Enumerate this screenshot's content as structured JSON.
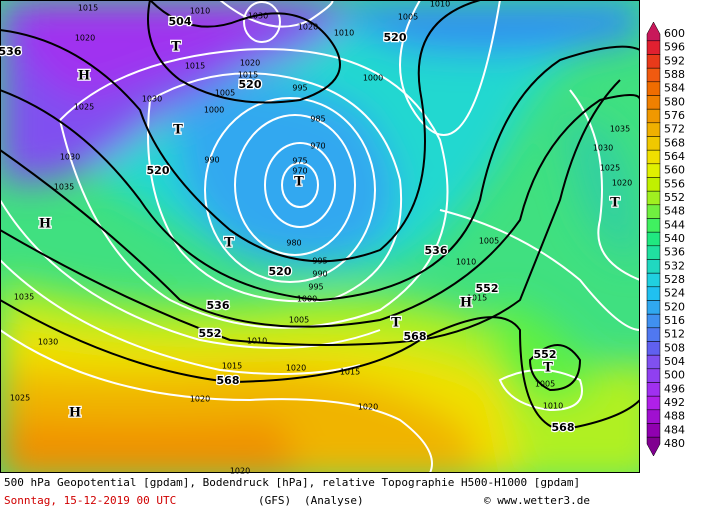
{
  "map": {
    "caption": "500 hPa Geopotential [gpdam], Bodendruck [hPa], relative Topographie H500-H1000 [gpdam]",
    "date": "Sonntag, 15-12-2019  00 UTC",
    "model": "(GFS)",
    "run": "(Analyse)",
    "source": "© www.wetter3.de",
    "heights": [
      "504",
      "536",
      "520",
      "520",
      "520",
      "536",
      "552",
      "568",
      "536",
      "552",
      "568",
      "552",
      "568",
      "520"
    ],
    "pressures": [
      "1015",
      "1010",
      "1030",
      "1020",
      "1010",
      "1005",
      "1010",
      "1020",
      "1015",
      "1020",
      "1015",
      "1005",
      "1000",
      "995",
      "1000",
      "1030",
      "1025",
      "985",
      "990",
      "970",
      "975",
      "970",
      "980",
      "995",
      "990",
      "995",
      "1000",
      "1005",
      "1010",
      "1015",
      "1020",
      "1015",
      "1020",
      "1020",
      "1030",
      "1035",
      "1025",
      "1030",
      "1035",
      "1005",
      "1010",
      "1015",
      "1005",
      "1010",
      "1035",
      "1030",
      "1025",
      "1020",
      "1020"
    ],
    "centers": [
      "T",
      "T",
      "H",
      "T",
      "T",
      "H",
      "H",
      "H",
      "T",
      "T",
      "T"
    ]
  },
  "colorbar": {
    "levels": [
      600,
      596,
      592,
      588,
      584,
      580,
      576,
      572,
      568,
      564,
      560,
      556,
      552,
      548,
      544,
      540,
      536,
      532,
      528,
      524,
      520,
      516,
      512,
      508,
      504,
      500,
      496,
      492,
      488,
      484,
      480
    ],
    "colors": [
      "#c8185a",
      "#e02030",
      "#e83a1a",
      "#f05a10",
      "#f06c00",
      "#f08000",
      "#f09800",
      "#f0b000",
      "#f0c800",
      "#f0e000",
      "#e0f000",
      "#c0f000",
      "#a0f020",
      "#70f040",
      "#40f060",
      "#20e880",
      "#20e0a0",
      "#20d8c0",
      "#20d0e0",
      "#20c0f0",
      "#30a8f0",
      "#4090f0",
      "#5078f0",
      "#6060f0",
      "#8050f0",
      "#9040f0",
      "#a030f0",
      "#b020e8",
      "#a010d0",
      "#9000b0",
      "#800090"
    ]
  }
}
